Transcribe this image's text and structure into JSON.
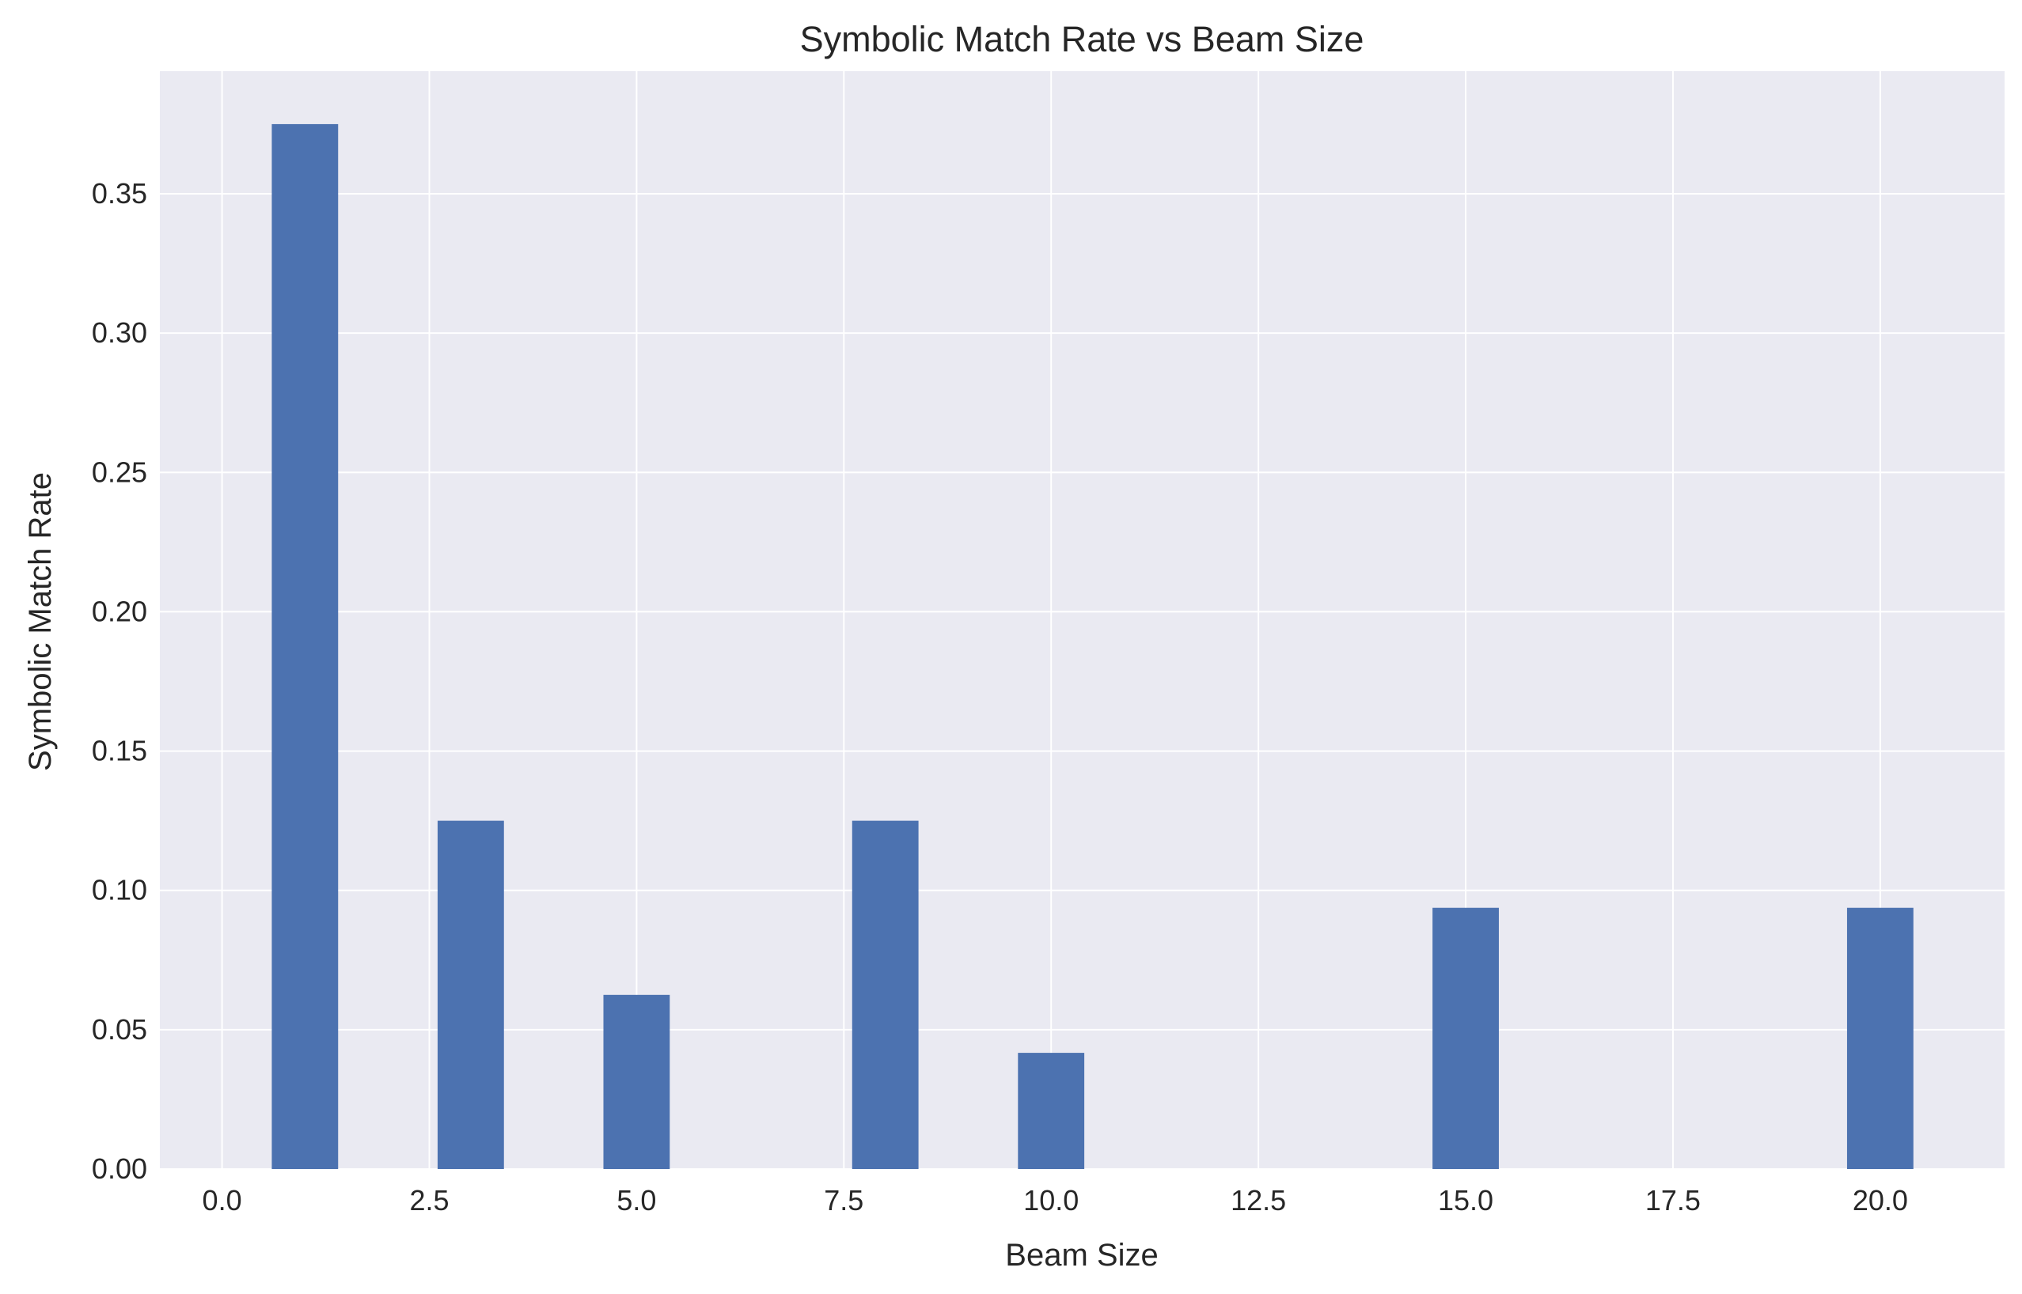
{
  "chart_data": {
    "type": "bar",
    "title": "Symbolic Match Rate vs Beam Size",
    "xlabel": "Beam Size",
    "ylabel": "Symbolic Match Rate",
    "x": [
      1,
      3,
      5,
      8,
      10,
      15,
      20
    ],
    "values": [
      0.375,
      0.125,
      0.0625,
      0.125,
      0.0417,
      0.09375,
      0.09375
    ],
    "bar_width": 0.8,
    "xlim": [
      -0.75,
      21.5
    ],
    "ylim": [
      0,
      0.394
    ],
    "xticks": [
      0.0,
      2.5,
      5.0,
      7.5,
      10.0,
      12.5,
      15.0,
      17.5,
      20.0
    ],
    "xtick_labels": [
      "0.0",
      "2.5",
      "5.0",
      "7.5",
      "10.0",
      "12.5",
      "15.0",
      "17.5",
      "20.0"
    ],
    "yticks": [
      0.0,
      0.05,
      0.1,
      0.15,
      0.2,
      0.25,
      0.3,
      0.35
    ],
    "ytick_labels": [
      "0.00",
      "0.05",
      "0.10",
      "0.15",
      "0.20",
      "0.25",
      "0.30",
      "0.35"
    ],
    "grid": true,
    "colors": {
      "bar": "#4c72b0",
      "plot_background": "#eaeaf2",
      "grid": "#ffffff",
      "text": "#262626"
    }
  }
}
